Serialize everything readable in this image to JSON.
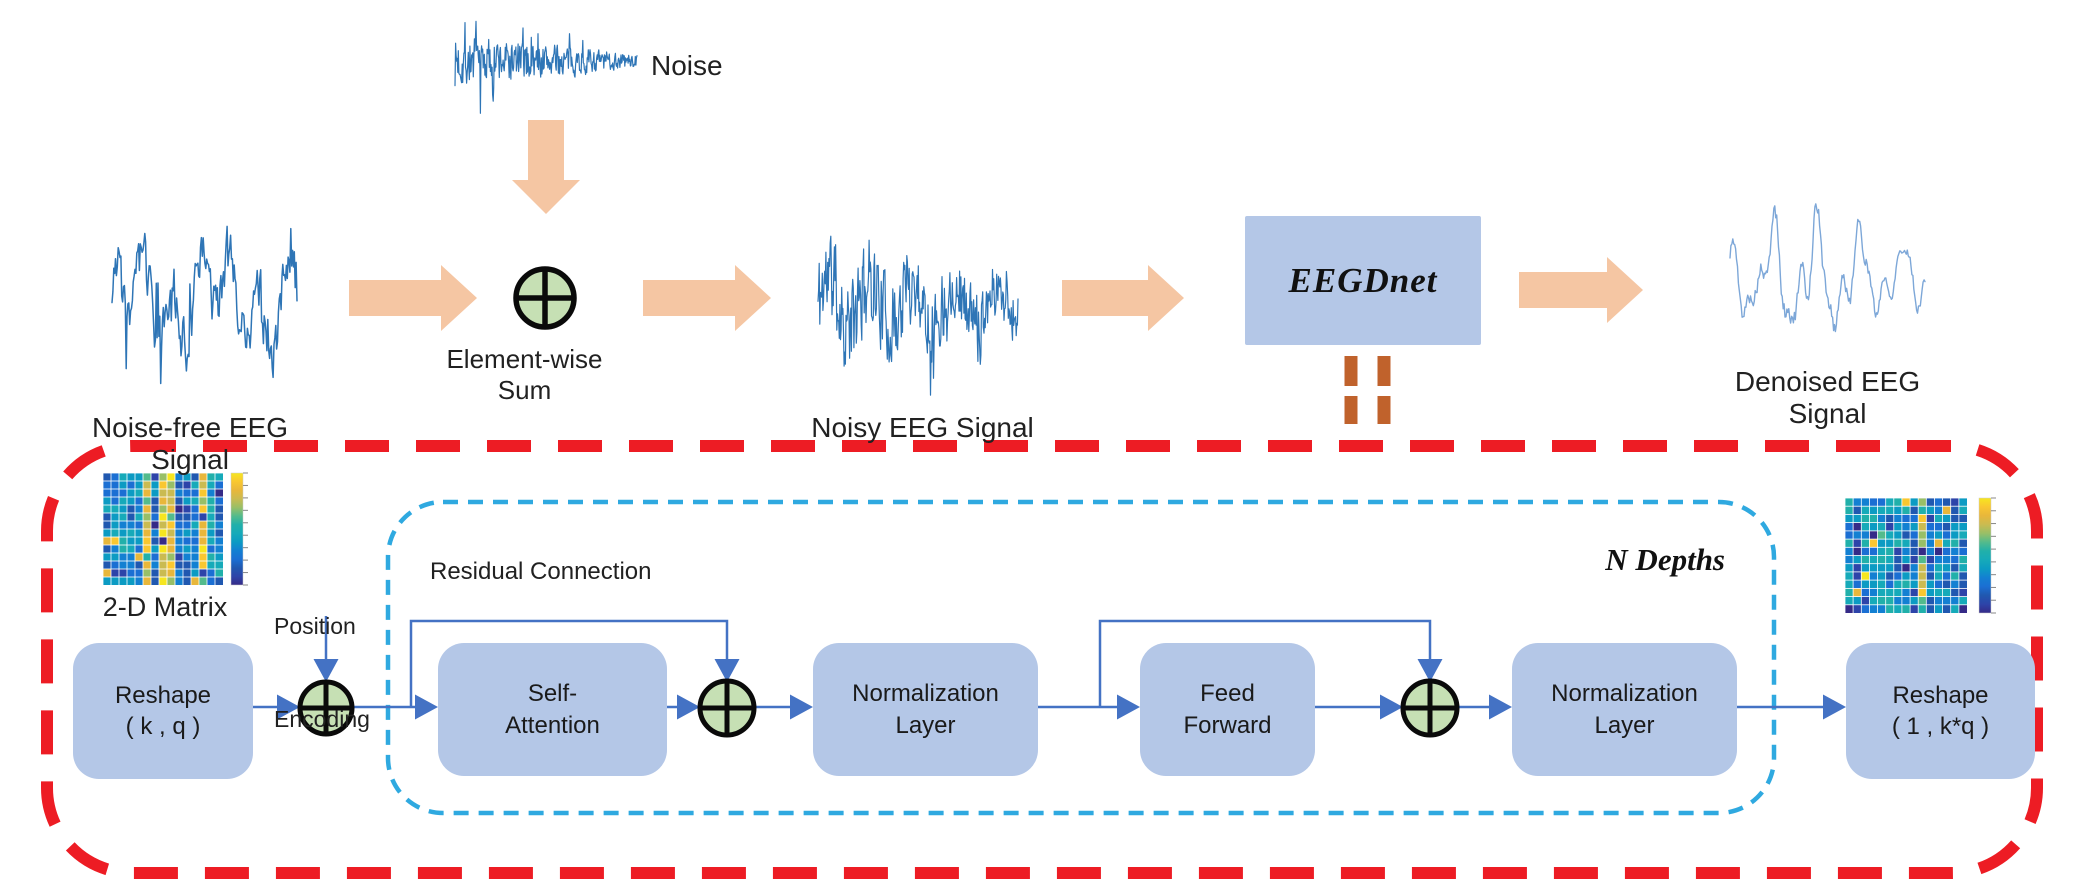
{
  "diagram": {
    "top_flow": {
      "noise_label": "Noise",
      "noise_free_label": "Noise-free EEG Signal",
      "sum_label": "Element-wise Sum",
      "noisy_label": "Noisy EEG Signal",
      "model_label": "EEGDnet",
      "denoised_label": "Denoised EEG Signal"
    },
    "network": {
      "matrix_label": "2-D Matrix",
      "position_encoding": {
        "line1": "Position",
        "line2": "Encoding"
      },
      "reshape_in": {
        "line1": "Reshape",
        "line2": "( k , q )"
      },
      "residual_label": "Residual Connection",
      "self_attention": {
        "line1": "Self-",
        "line2": "Attention"
      },
      "norm1": {
        "line1": "Normalization",
        "line2": "Layer"
      },
      "feed_forward": {
        "line1": "Feed",
        "line2": "Forward"
      },
      "norm2": {
        "line1": "Normalization",
        "line2": "Layer"
      },
      "n_depths_label": "N Depths",
      "reshape_out": {
        "line1": "Reshape",
        "line2": "( 1 , k*q )"
      }
    },
    "icons": {
      "sum_nodes": "circled-plus",
      "flow_arrows": "thick-right-arrow",
      "equivalence_marker": "double-dash"
    }
  },
  "colors": {
    "flow_box_fill": "#b4c7e7",
    "arrow_peach": "#f5c6a3",
    "connector_blue": "#4472c4",
    "sum_node_fill": "#c6e0b4",
    "sum_node_stroke": "#0a0a0a",
    "outer_border_red": "#ed1c24",
    "inner_border_cyan": "#2fa9e0",
    "equiv_dash_orange": "#c0622c",
    "waveform_blue": "#2e75b6",
    "waveform_light_blue": "#7da7d8",
    "heatmap_palette": [
      "#352a87",
      "#2d44a9",
      "#2058b0",
      "#1b6fd3",
      "#1380d2",
      "#0c9bc3",
      "#16aab9",
      "#21b0aa",
      "#53bb8c",
      "#98bf67",
      "#cabb51",
      "#e8b73b",
      "#f9c730",
      "#f6e620"
    ],
    "tick_gray": "#888888"
  }
}
